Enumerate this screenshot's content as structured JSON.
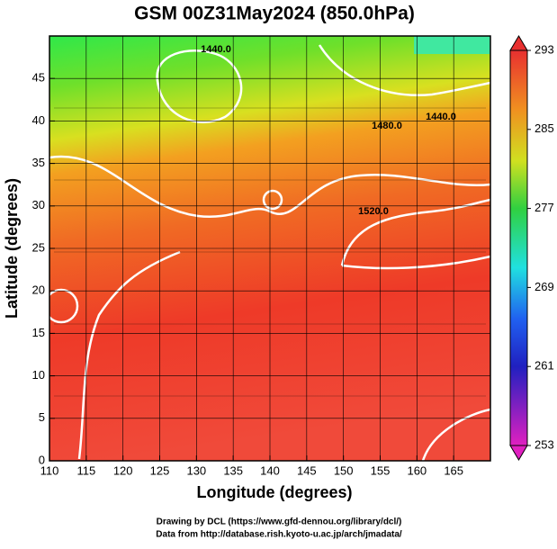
{
  "chart_data": {
    "type": "field_map",
    "title": "GSM 00Z31May2024 (850.0hPa)",
    "x_label": "Longitude (degrees)",
    "y_label": "Latitude  (degrees)",
    "xlim": [
      110,
      170
    ],
    "xticks": [
      110,
      115,
      120,
      125,
      130,
      135,
      140,
      145,
      150,
      155,
      160,
      165
    ],
    "ylim": [
      0,
      50
    ],
    "yticks": [
      0,
      5,
      10,
      15,
      20,
      25,
      30,
      35,
      40,
      45
    ],
    "colorbar_lim": [
      253,
      293
    ],
    "colorbar_ticks": [
      253,
      261,
      269,
      277,
      285,
      293
    ],
    "contour_labels": [
      "1440.0",
      "1480.0",
      "1440.0",
      "1520.0"
    ],
    "credits": [
      "Drawing by DCL (https://www.gfd-dennou.org/library/dcl/)",
      "Data from http://database.rish.kyoto-u.ac.jp/arch/jmadata/"
    ]
  }
}
